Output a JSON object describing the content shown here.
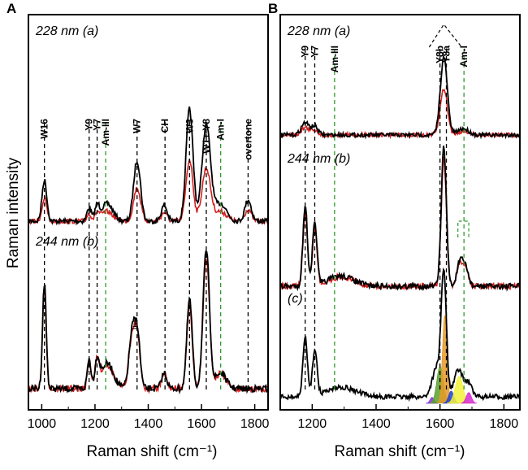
{
  "chart_data": [
    {
      "type": "line",
      "panel_label": "A",
      "xlabel": "Raman shift (cm⁻¹)",
      "ylabel": "Raman intensity",
      "xlim": [
        950,
        1850
      ],
      "x_ticks": [
        1000,
        1200,
        1400,
        1600,
        1800
      ],
      "x_tick_labels": [
        "1000",
        "1200",
        "1400",
        "1600",
        "1800"
      ],
      "traces": [
        {
          "label": "228 nm (a)",
          "series": [
            {
              "name": "black",
              "color": "#000000"
            },
            {
              "name": "red",
              "color": "#d42020"
            }
          ]
        },
        {
          "label": "244 nm (b)",
          "series": [
            {
              "name": "black",
              "color": "#000000"
            },
            {
              "name": "red",
              "color": "#d42020"
            }
          ]
        }
      ],
      "peaks_a": [
        {
          "x": 1010,
          "h": 0.42,
          "w": 9
        },
        {
          "x": 1178,
          "h": 0.14,
          "w": 8
        },
        {
          "x": 1208,
          "h": 0.14,
          "w": 8
        },
        {
          "x": 1245,
          "h": 0.18,
          "w": 22
        },
        {
          "x": 1358,
          "h": 0.62,
          "w": 13
        },
        {
          "x": 1460,
          "h": 0.16,
          "w": 11
        },
        {
          "x": 1555,
          "h": 1.15,
          "w": 13
        },
        {
          "x": 1618,
          "h": 0.98,
          "w": 16
        },
        {
          "x": 1672,
          "h": 0.18,
          "w": 22
        },
        {
          "x": 1775,
          "h": 0.22,
          "w": 12
        }
      ],
      "peaks_b": [
        {
          "x": 1010,
          "h": 1.08,
          "w": 7
        },
        {
          "x": 1178,
          "h": 0.3,
          "w": 7
        },
        {
          "x": 1208,
          "h": 0.26,
          "w": 8
        },
        {
          "x": 1245,
          "h": 0.26,
          "w": 24
        },
        {
          "x": 1340,
          "h": 0.58,
          "w": 12
        },
        {
          "x": 1360,
          "h": 0.5,
          "w": 10
        },
        {
          "x": 1460,
          "h": 0.16,
          "w": 10
        },
        {
          "x": 1555,
          "h": 0.92,
          "w": 10
        },
        {
          "x": 1618,
          "h": 1.42,
          "w": 12
        },
        {
          "x": 1672,
          "h": 0.16,
          "w": 20
        }
      ],
      "annotations": [
        {
          "text": "W16",
          "x": 1010,
          "color": "#000000"
        },
        {
          "text": "Y9",
          "x": 1178,
          "color": "#000000"
        },
        {
          "text": "Y7",
          "x": 1208,
          "color": "#000000"
        },
        {
          "text": "Am-III",
          "x": 1240,
          "color": "#2e9b2e"
        },
        {
          "text": "W7",
          "x": 1358,
          "color": "#000000"
        },
        {
          "text": "CH",
          "x": 1463,
          "color": "#000000"
        },
        {
          "text": "W3",
          "x": 1555,
          "color": "#000000"
        },
        {
          "text": "W1+ Y8",
          "x": 1618,
          "color": "#000000"
        },
        {
          "text": "Am-I",
          "x": 1672,
          "color": "#2e9b2e"
        },
        {
          "text": "overtone",
          "x": 1775,
          "color": "#000000"
        }
      ],
      "doublet_label": "1"
    },
    {
      "type": "line",
      "panel_label": "B",
      "xlabel": "Raman shift (cm⁻¹)",
      "ylabel": "",
      "xlim": [
        1100,
        1850
      ],
      "x_ticks": [
        1200,
        1400,
        1600,
        1800
      ],
      "x_tick_labels": [
        "1200",
        "1400",
        "1600",
        "1800"
      ],
      "traces": [
        {
          "label": "228 nm (a)",
          "series": [
            {
              "name": "black",
              "color": "#000000"
            },
            {
              "name": "red",
              "color": "#d42020"
            }
          ]
        },
        {
          "label": "244 nm (b)",
          "series": [
            {
              "name": "black",
              "color": "#000000"
            },
            {
              "name": "red",
              "color": "#d42020"
            }
          ]
        },
        {
          "label": "(c)",
          "series": [
            {
              "name": "black",
              "color": "#000000"
            }
          ]
        }
      ],
      "peaks_a": [
        {
          "x": 1178,
          "h": 0.2,
          "w": 12
        },
        {
          "x": 1208,
          "h": 0.14,
          "w": 10
        },
        {
          "x": 1612,
          "h": 1.25,
          "w": 11
        },
        {
          "x": 1672,
          "h": 0.1,
          "w": 18
        }
      ],
      "peaks_b": [
        {
          "x": 1178,
          "h": 1.1,
          "w": 7
        },
        {
          "x": 1208,
          "h": 0.85,
          "w": 7
        },
        {
          "x": 1290,
          "h": 0.14,
          "w": 40
        },
        {
          "x": 1612,
          "h": 1.9,
          "w": 8
        },
        {
          "x": 1662,
          "h": 0.32,
          "w": 9
        },
        {
          "x": 1680,
          "h": 0.26,
          "w": 9
        }
      ],
      "peaks_c": [
        {
          "x": 1178,
          "h": 1.2,
          "w": 7
        },
        {
          "x": 1208,
          "h": 0.95,
          "w": 7
        },
        {
          "x": 1290,
          "h": 0.2,
          "w": 45
        },
        {
          "x": 1590,
          "h": 0.6,
          "w": 14
        },
        {
          "x": 1612,
          "h": 2.45,
          "w": 8
        },
        {
          "x": 1658,
          "h": 0.55,
          "w": 14
        },
        {
          "x": 1690,
          "h": 0.28,
          "w": 10
        }
      ],
      "fit_components": [
        {
          "x": 1575,
          "h": 0.12,
          "w": 6,
          "color": "#8a2be2"
        },
        {
          "x": 1600,
          "h": 0.75,
          "w": 10,
          "color": "#5aa02c"
        },
        {
          "x": 1615,
          "h": 1.8,
          "w": 7,
          "color": "#e69a28"
        },
        {
          "x": 1635,
          "h": 0.25,
          "w": 8,
          "color": "#1f3fd6"
        },
        {
          "x": 1660,
          "h": 0.55,
          "w": 12,
          "color": "#f2f23a"
        },
        {
          "x": 1690,
          "h": 0.22,
          "w": 8,
          "color": "#d52ad5"
        }
      ],
      "annotations": [
        {
          "text": "Y9",
          "x": 1178,
          "color": "#000000"
        },
        {
          "text": "Y7",
          "x": 1208,
          "color": "#000000"
        },
        {
          "text": "Am-III",
          "x": 1270,
          "color": "#2e9b2e"
        },
        {
          "text": "Y8b",
          "x": 1600,
          "color": "#000000"
        },
        {
          "text": "Y8a",
          "x": 1620,
          "color": "#000000"
        },
        {
          "text": "Am-I",
          "x": 1675,
          "color": "#2e9b2e"
        }
      ]
    }
  ]
}
